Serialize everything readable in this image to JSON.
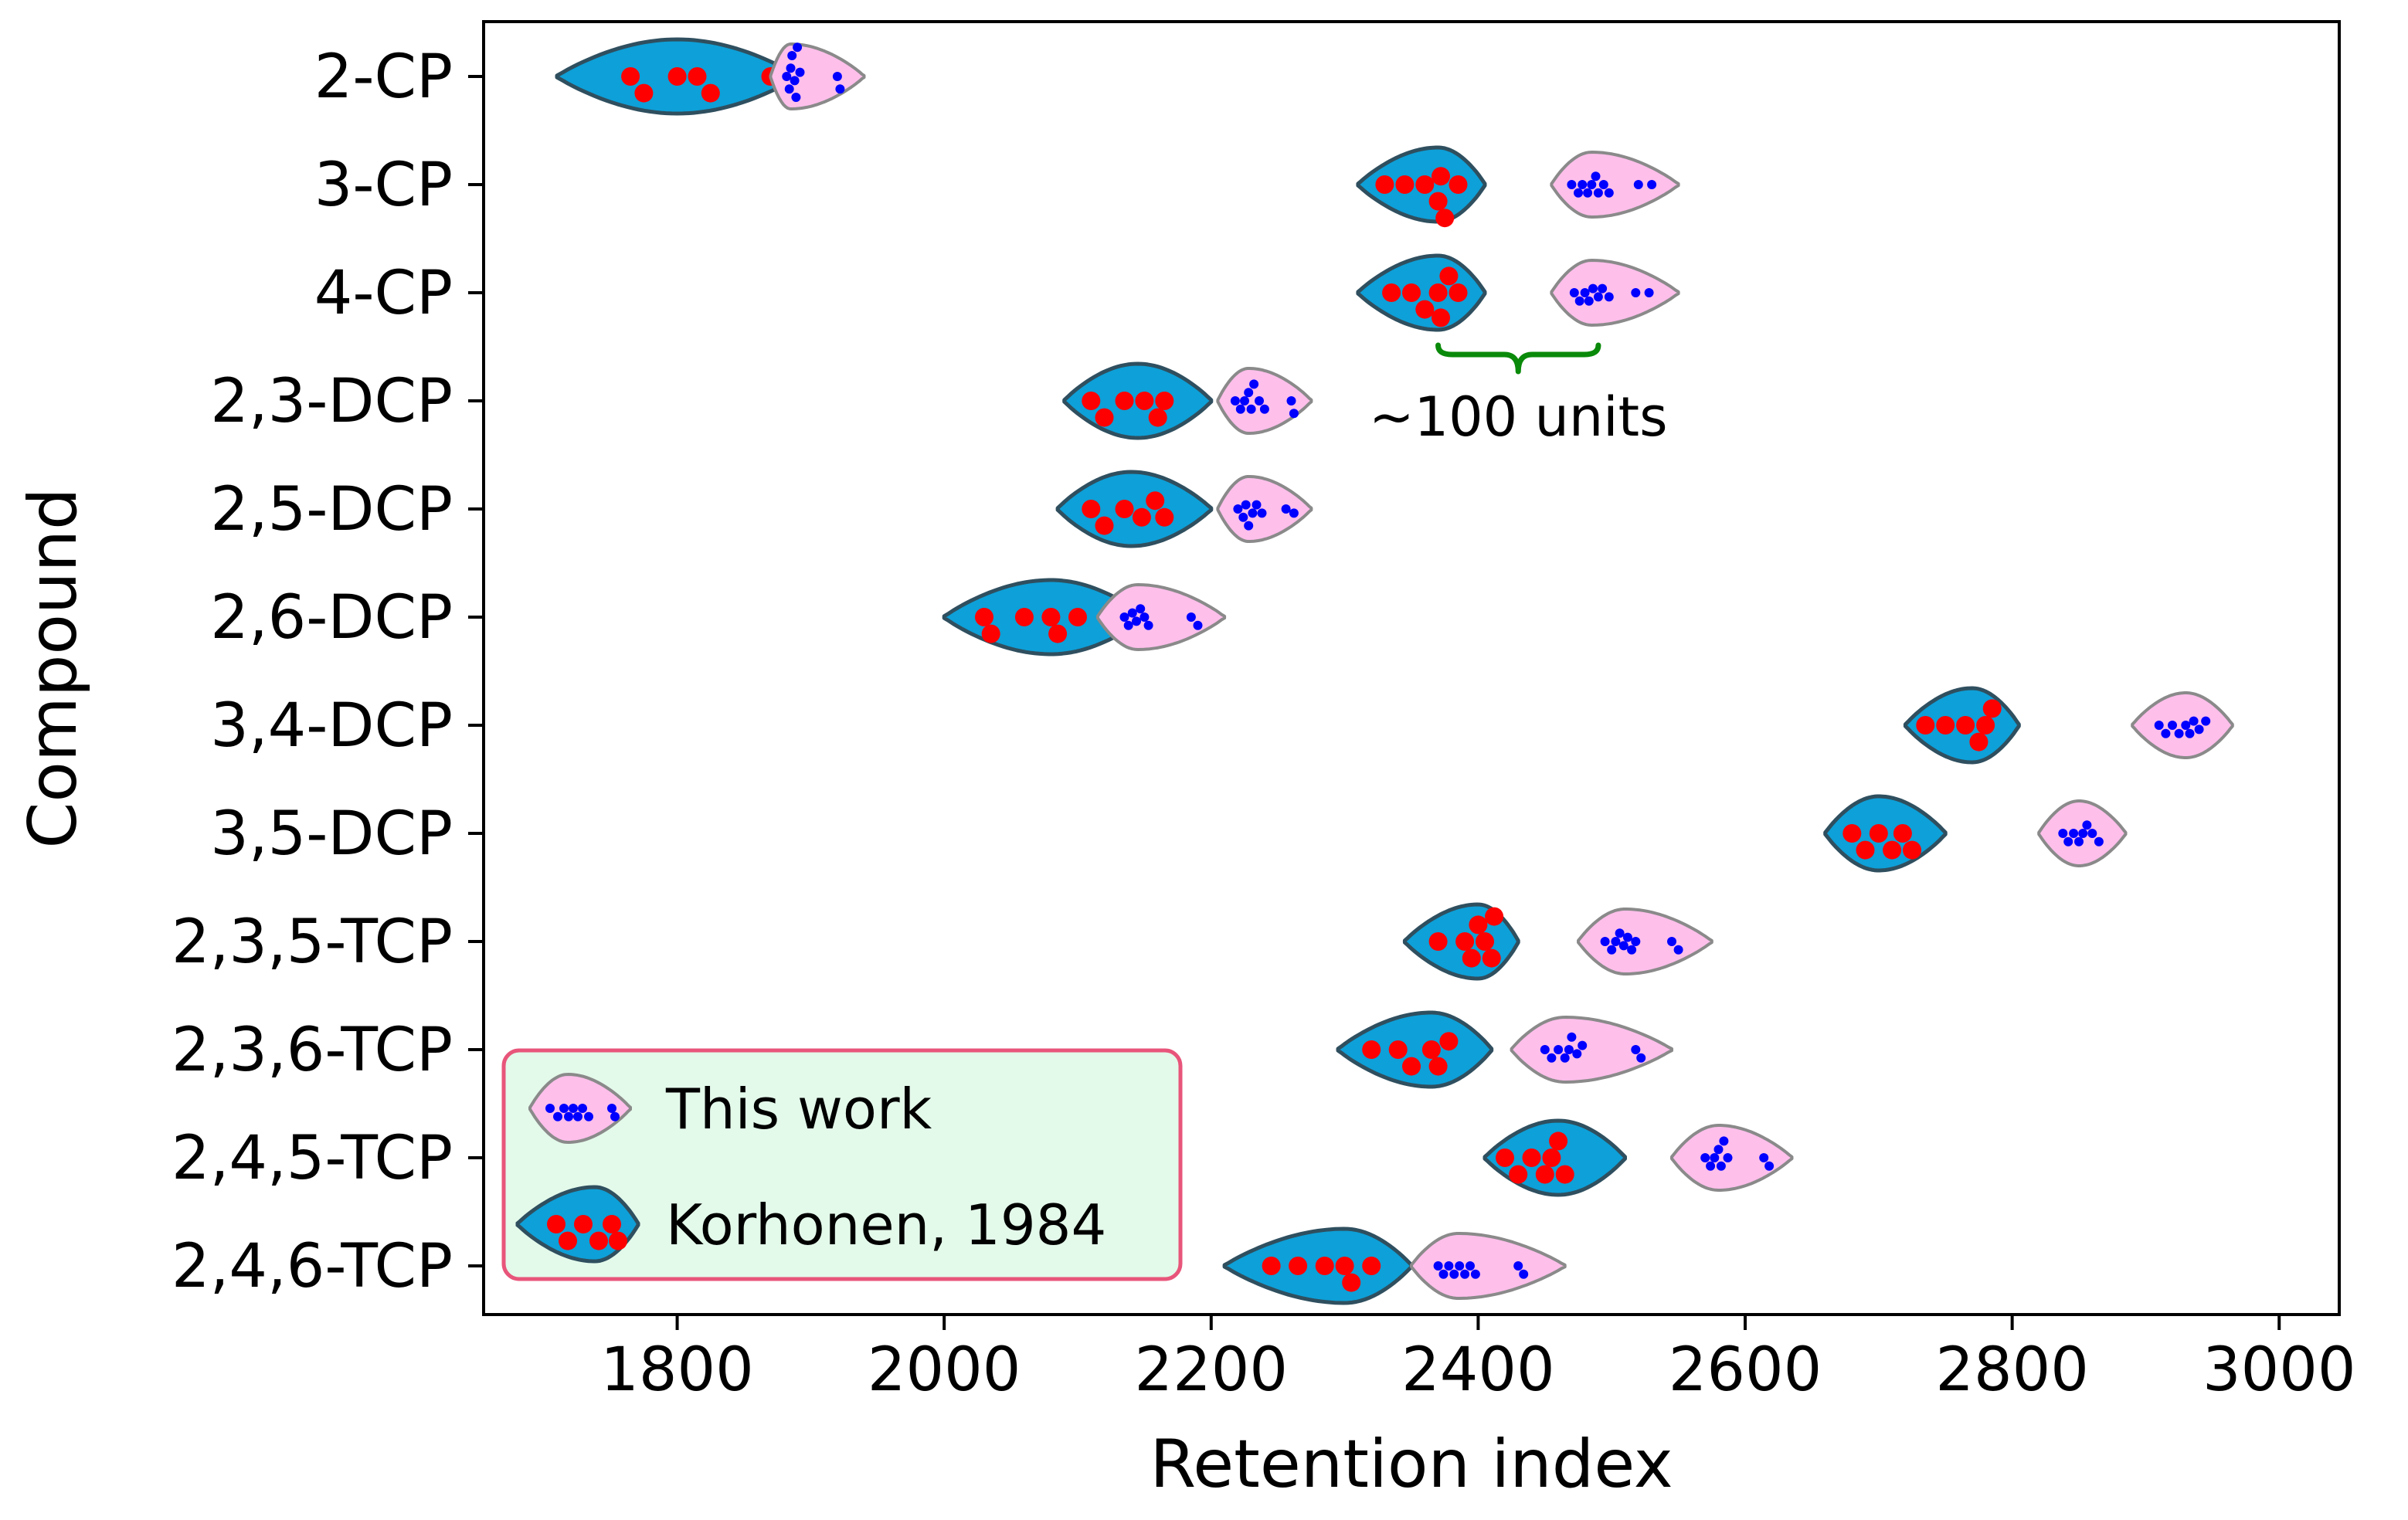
{
  "chart_data": {
    "type": "violin",
    "title": "",
    "xlabel": "Retention index",
    "ylabel": "Compound",
    "xlim": [
      1655,
      3045
    ],
    "xticks": [
      1800,
      2000,
      2200,
      2400,
      2600,
      2800,
      3000
    ],
    "xtick_labels": [
      "1800",
      "2000",
      "2200",
      "2400",
      "2600",
      "2800",
      "3000"
    ],
    "grid": false,
    "colors": {
      "korhonen_fill": "#0ea0d8",
      "korhonen_edge": "#2f4f5f",
      "korhonen_point": "#ff0000",
      "thiswork_fill": "#ffbfeb",
      "thiswork_edge": "#8a8a8a",
      "thiswork_point": "#0000ff",
      "bracket": "#0a8a0a",
      "legend_bg": "#e3f9ea",
      "legend_edge": "#e8557a"
    },
    "compounds": [
      "2-CP",
      "3-CP",
      "4-CP",
      "2,3-DCP",
      "2,5-DCP",
      "2,6-DCP",
      "3,4-DCP",
      "3,5-DCP",
      "2,3,5-TCP",
      "2,3,6-TCP",
      "2,4,5-TCP",
      "2,4,6-TCP"
    ],
    "series": [
      {
        "name": "Korhonen, 1984",
        "distributions": [
          {
            "compound": "2-CP",
            "min": 1710,
            "max": 1890,
            "mode": 1800,
            "values": [
              1765,
              1775,
              1800,
              1815,
              1825,
              1870
            ]
          },
          {
            "compound": "3-CP",
            "min": 2310,
            "max": 2405,
            "mode": 2370,
            "values": [
              2330,
              2345,
              2360,
              2370,
              2372,
              2375,
              2385
            ]
          },
          {
            "compound": "4-CP",
            "min": 2310,
            "max": 2405,
            "mode": 2370,
            "values": [
              2335,
              2350,
              2360,
              2370,
              2372,
              2378,
              2385
            ]
          },
          {
            "compound": "2,3-DCP",
            "min": 2090,
            "max": 2200,
            "mode": 2145,
            "values": [
              2110,
              2120,
              2135,
              2150,
              2160,
              2165
            ]
          },
          {
            "compound": "2,5-DCP",
            "min": 2085,
            "max": 2200,
            "mode": 2140,
            "values": [
              2110,
              2120,
              2135,
              2148,
              2158,
              2165
            ]
          },
          {
            "compound": "2,6-DCP",
            "min": 2000,
            "max": 2150,
            "mode": 2080,
            "values": [
              2030,
              2035,
              2060,
              2080,
              2085,
              2100
            ]
          },
          {
            "compound": "3,4-DCP",
            "min": 2720,
            "max": 2805,
            "mode": 2770,
            "values": [
              2735,
              2750,
              2765,
              2775,
              2780,
              2785
            ]
          },
          {
            "compound": "3,5-DCP",
            "min": 2660,
            "max": 2750,
            "mode": 2700,
            "values": [
              2680,
              2690,
              2700,
              2710,
              2718,
              2725
            ]
          },
          {
            "compound": "2,3,5-TCP",
            "min": 2345,
            "max": 2430,
            "mode": 2400,
            "values": [
              2370,
              2390,
              2395,
              2400,
              2405,
              2410,
              2412
            ]
          },
          {
            "compound": "2,3,6-TCP",
            "min": 2295,
            "max": 2410,
            "mode": 2365,
            "values": [
              2320,
              2340,
              2350,
              2365,
              2370,
              2378
            ]
          },
          {
            "compound": "2,4,5-TCP",
            "min": 2405,
            "max": 2510,
            "mode": 2460,
            "values": [
              2420,
              2430,
              2440,
              2450,
              2455,
              2460,
              2465
            ]
          },
          {
            "compound": "2,4,6-TCP",
            "min": 2210,
            "max": 2350,
            "mode": 2300,
            "values": [
              2245,
              2265,
              2285,
              2300,
              2305,
              2320
            ]
          }
        ]
      },
      {
        "name": "This work",
        "distributions": [
          {
            "compound": "2-CP",
            "min": 1870,
            "max": 1940,
            "mode": 1885,
            "values": [
              1882,
              1884,
              1885,
              1886,
              1888,
              1889,
              1890,
              1892,
              1920,
              1922
            ]
          },
          {
            "compound": "3-CP",
            "min": 2455,
            "max": 2550,
            "mode": 2485,
            "values": [
              2470,
              2475,
              2478,
              2482,
              2485,
              2488,
              2490,
              2494,
              2498,
              2520,
              2530
            ]
          },
          {
            "compound": "4-CP",
            "min": 2455,
            "max": 2550,
            "mode": 2485,
            "values": [
              2472,
              2476,
              2480,
              2483,
              2486,
              2490,
              2493,
              2498,
              2518,
              2528
            ]
          },
          {
            "compound": "2,3-DCP",
            "min": 2205,
            "max": 2275,
            "mode": 2228,
            "values": [
              2218,
              2222,
              2225,
              2228,
              2230,
              2232,
              2236,
              2240,
              2260,
              2262
            ]
          },
          {
            "compound": "2,5-DCP",
            "min": 2205,
            "max": 2275,
            "mode": 2228,
            "values": [
              2220,
              2224,
              2226,
              2228,
              2231,
              2234,
              2238,
              2256,
              2262
            ]
          },
          {
            "compound": "2,6-DCP",
            "min": 2115,
            "max": 2210,
            "mode": 2145,
            "values": [
              2135,
              2138,
              2141,
              2144,
              2147,
              2150,
              2153,
              2185,
              2190
            ]
          },
          {
            "compound": "3,4-DCP",
            "min": 2890,
            "max": 2965,
            "mode": 2930,
            "values": [
              2910,
              2915,
              2920,
              2925,
              2930,
              2933,
              2936,
              2940,
              2945
            ]
          },
          {
            "compound": "3,5-DCP",
            "min": 2820,
            "max": 2885,
            "mode": 2850,
            "values": [
              2838,
              2842,
              2846,
              2850,
              2853,
              2856,
              2860,
              2865
            ]
          },
          {
            "compound": "2,3,5-TCP",
            "min": 2475,
            "max": 2575,
            "mode": 2510,
            "values": [
              2495,
              2500,
              2503,
              2506,
              2509,
              2512,
              2515,
              2518,
              2545,
              2550
            ]
          },
          {
            "compound": "2,3,6-TCP",
            "min": 2425,
            "max": 2545,
            "mode": 2465,
            "values": [
              2450,
              2455,
              2460,
              2465,
              2468,
              2470,
              2474,
              2478,
              2518,
              2522
            ]
          },
          {
            "compound": "2,4,5-TCP",
            "min": 2545,
            "max": 2635,
            "mode": 2580,
            "values": [
              2570,
              2574,
              2577,
              2580,
              2582,
              2584,
              2587,
              2614,
              2618
            ]
          },
          {
            "compound": "2,4,6-TCP",
            "min": 2350,
            "max": 2465,
            "mode": 2385,
            "values": [
              2370,
              2374,
              2378,
              2382,
              2386,
              2390,
              2394,
              2398,
              2430,
              2434
            ]
          }
        ]
      }
    ],
    "annotations": [
      {
        "text": "~100 units",
        "bracket_from": 2370,
        "bracket_to": 2490,
        "below_compound": "4-CP"
      }
    ],
    "legend": {
      "position": "lower-left",
      "entries": [
        "This work",
        "Korhonen, 1984"
      ]
    }
  }
}
